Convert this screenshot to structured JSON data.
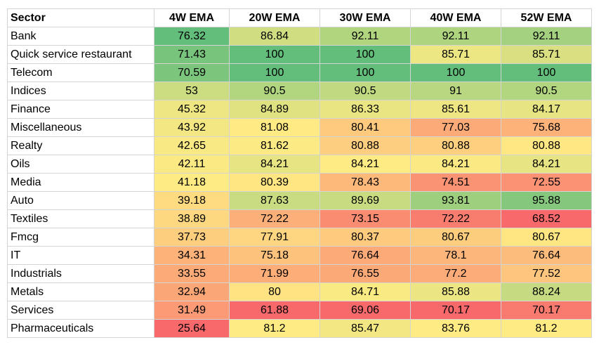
{
  "chart_data": {
    "type": "heatmap",
    "columns": [
      "Sector",
      "4W EMA",
      "20W EMA",
      "30W EMA",
      "40W EMA",
      "52W EMA"
    ],
    "rows": [
      {
        "sector": "Bank",
        "values": [
          "76.32",
          "86.84",
          "92.11",
          "92.11",
          "92.11"
        ]
      },
      {
        "sector": "Quick service restaurant",
        "values": [
          "71.43",
          "100",
          "100",
          "85.71",
          "85.71"
        ]
      },
      {
        "sector": "Telecom",
        "values": [
          "70.59",
          "100",
          "100",
          "100",
          "100"
        ]
      },
      {
        "sector": "Indices",
        "values": [
          "53",
          "90.5",
          "90.5",
          "91",
          "90.5"
        ]
      },
      {
        "sector": "Finance",
        "values": [
          "45.32",
          "84.89",
          "86.33",
          "85.61",
          "84.17"
        ]
      },
      {
        "sector": "Miscellaneous",
        "values": [
          "43.92",
          "81.08",
          "80.41",
          "77.03",
          "75.68"
        ]
      },
      {
        "sector": "Realty",
        "values": [
          "42.65",
          "81.62",
          "80.88",
          "80.88",
          "80.88"
        ]
      },
      {
        "sector": "Oils",
        "values": [
          "42.11",
          "84.21",
          "84.21",
          "84.21",
          "84.21"
        ]
      },
      {
        "sector": "Media",
        "values": [
          "41.18",
          "80.39",
          "78.43",
          "74.51",
          "72.55"
        ]
      },
      {
        "sector": "Auto",
        "values": [
          "39.18",
          "87.63",
          "89.69",
          "93.81",
          "95.88"
        ]
      },
      {
        "sector": "Textiles",
        "values": [
          "38.89",
          "72.22",
          "73.15",
          "72.22",
          "68.52"
        ]
      },
      {
        "sector": "Fmcg",
        "values": [
          "37.73",
          "77.91",
          "80.37",
          "80.67",
          "80.67"
        ]
      },
      {
        "sector": "IT",
        "values": [
          "34.31",
          "75.18",
          "76.64",
          "78.1",
          "76.64"
        ]
      },
      {
        "sector": "Industrials",
        "values": [
          "33.55",
          "71.99",
          "76.55",
          "77.2",
          "77.52"
        ]
      },
      {
        "sector": "Metals",
        "values": [
          "32.94",
          "80",
          "84.71",
          "85.88",
          "88.24"
        ]
      },
      {
        "sector": "Services",
        "values": [
          "31.49",
          "61.88",
          "69.06",
          "70.17",
          "70.17"
        ]
      },
      {
        "sector": "Pharmaceuticals",
        "values": [
          "25.64",
          "81.2",
          "85.47",
          "83.76",
          "81.2"
        ]
      }
    ],
    "color_scale": {
      "low": "#f8696b",
      "mid": "#ffeb84",
      "high": "#63be7b"
    }
  }
}
